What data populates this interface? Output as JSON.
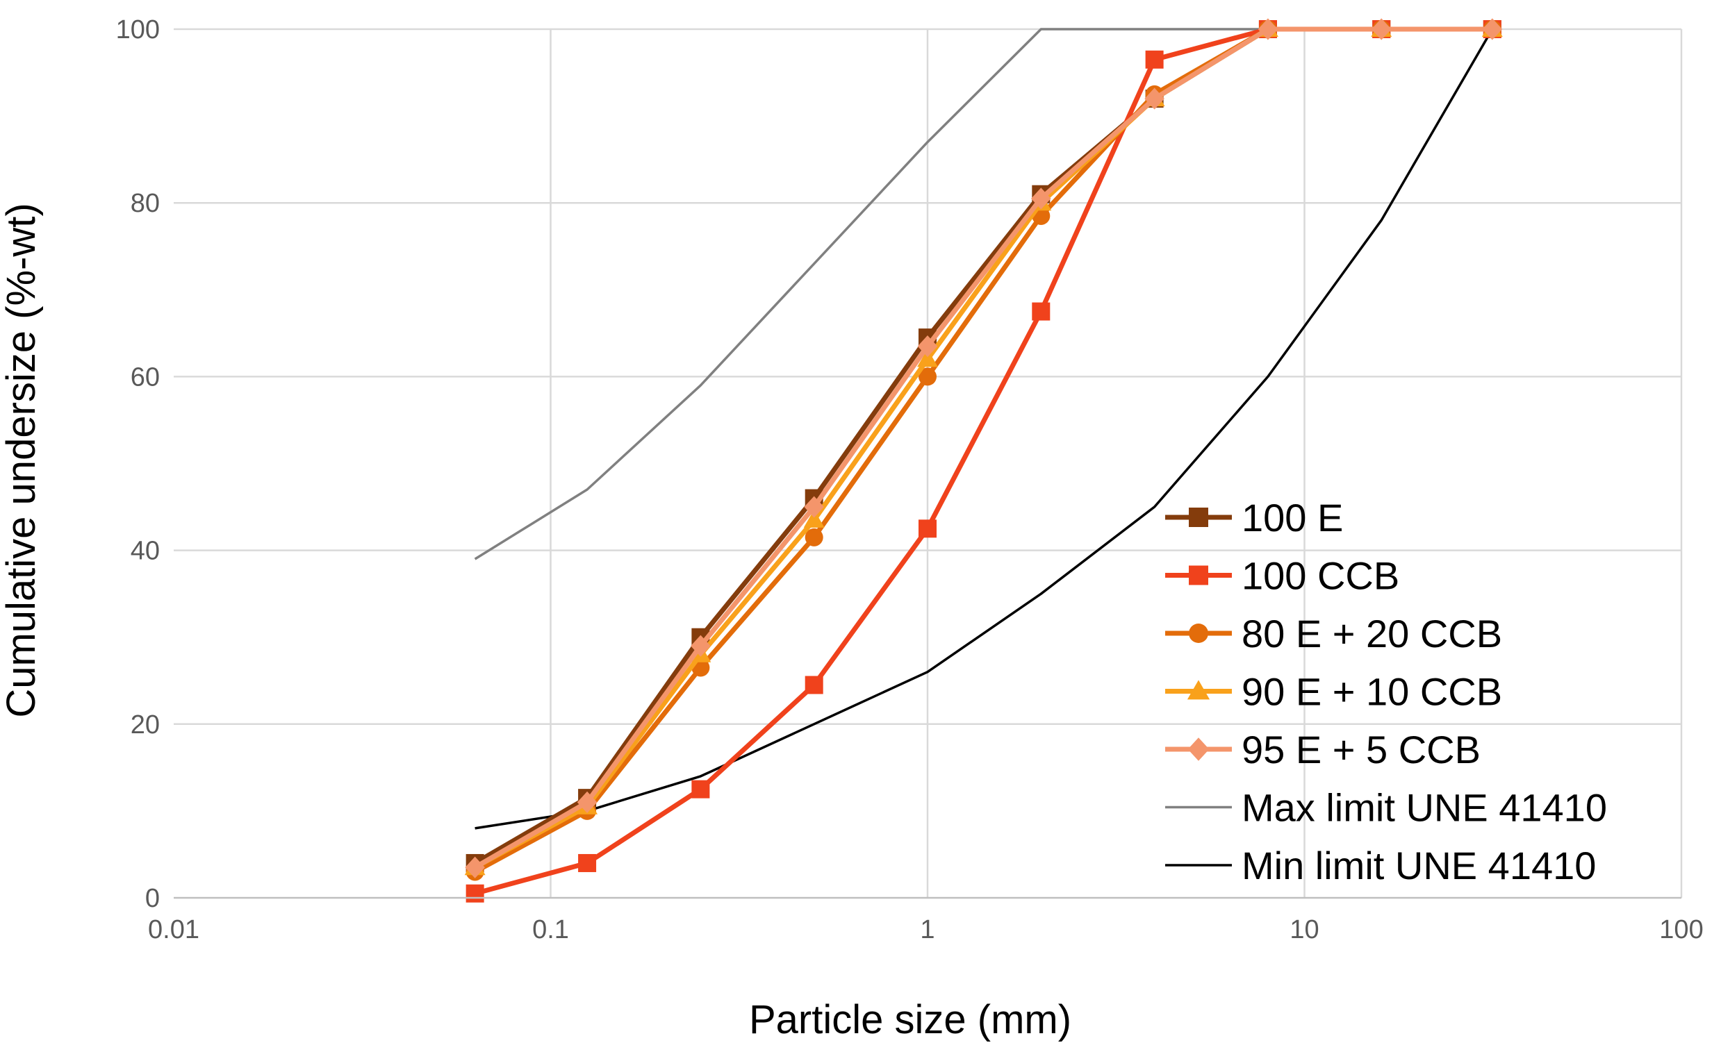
{
  "chart_data": {
    "type": "line",
    "title": "",
    "xlabel": "Particle size (mm)",
    "ylabel": "Cumulative undersize  (%-wt)",
    "xscale": "log",
    "xlim": [
      0.01,
      100
    ],
    "ylim": [
      0,
      100
    ],
    "x_ticks": [
      "0.01",
      "0.1",
      "1",
      "10",
      "100"
    ],
    "x_tick_values": [
      0.01,
      0.1,
      1,
      10,
      100
    ],
    "y_ticks": [
      "0",
      "20",
      "40",
      "60",
      "80",
      "100"
    ],
    "y_tick_values": [
      0,
      20,
      40,
      60,
      80,
      100
    ],
    "grid": true,
    "legend_position": "right",
    "series": [
      {
        "name": "Max limit UNE 41410",
        "color": "#808080",
        "marker": "none",
        "line": "thin",
        "x": [
          0.063,
          0.125,
          0.25,
          0.5,
          1,
          2,
          4,
          8,
          16,
          31.5
        ],
        "y": [
          39,
          47,
          59,
          73,
          87,
          100,
          100,
          100,
          100,
          100
        ]
      },
      {
        "name": "Min limit UNE 41410",
        "color": "#000000",
        "marker": "none",
        "line": "thin",
        "x": [
          0.063,
          0.125,
          0.25,
          0.5,
          1,
          2,
          4,
          8,
          16,
          31.5
        ],
        "y": [
          8,
          10,
          14,
          20,
          26,
          35,
          45,
          60,
          78,
          100
        ]
      },
      {
        "name": "100 E",
        "color": "#843C0C",
        "marker": "square",
        "line": "thick",
        "x": [
          0.063,
          0.125,
          0.25,
          0.5,
          1,
          2,
          4,
          8,
          16,
          31.5
        ],
        "y": [
          4,
          11.5,
          30,
          46,
          64.5,
          81,
          92,
          100,
          100,
          100
        ]
      },
      {
        "name": "100 CCB",
        "color": "#F0421C",
        "marker": "square",
        "line": "thick",
        "x": [
          0.063,
          0.125,
          0.25,
          0.5,
          1,
          2,
          4,
          8,
          16,
          31.5
        ],
        "y": [
          0.5,
          4,
          12.5,
          24.5,
          42.5,
          67.5,
          96.5,
          100,
          100,
          100
        ]
      },
      {
        "name": "80 E + 20 CCB",
        "color": "#E36C0A",
        "marker": "circle",
        "line": "thick",
        "x": [
          0.063,
          0.125,
          0.25,
          0.5,
          1,
          2,
          4,
          8,
          16,
          31.5
        ],
        "y": [
          3,
          10,
          26.5,
          41.5,
          60,
          78.5,
          92.5,
          100,
          100,
          100
        ]
      },
      {
        "name": "90 E + 10 CCB",
        "color": "#F9A11B",
        "marker": "triangle",
        "line": "thick",
        "x": [
          0.063,
          0.125,
          0.25,
          0.5,
          1,
          2,
          4,
          8,
          16,
          31.5
        ],
        "y": [
          3.5,
          10.5,
          28,
          43.5,
          62,
          80,
          92,
          100,
          100,
          100
        ]
      },
      {
        "name": "95 E + 5 CCB",
        "color": "#F4956B",
        "marker": "diamond",
        "line": "thick",
        "x": [
          0.063,
          0.125,
          0.25,
          0.5,
          1,
          2,
          4,
          8,
          16,
          31.5
        ],
        "y": [
          3.5,
          11,
          29,
          45,
          63.5,
          80.5,
          92,
          100,
          100,
          100
        ]
      }
    ],
    "legend_order": [
      "100 E",
      "100 CCB",
      "80 E + 20 CCB",
      "90 E + 10 CCB",
      "95 E + 5 CCB",
      "Max limit UNE 41410",
      "Min limit UNE 41410"
    ]
  }
}
